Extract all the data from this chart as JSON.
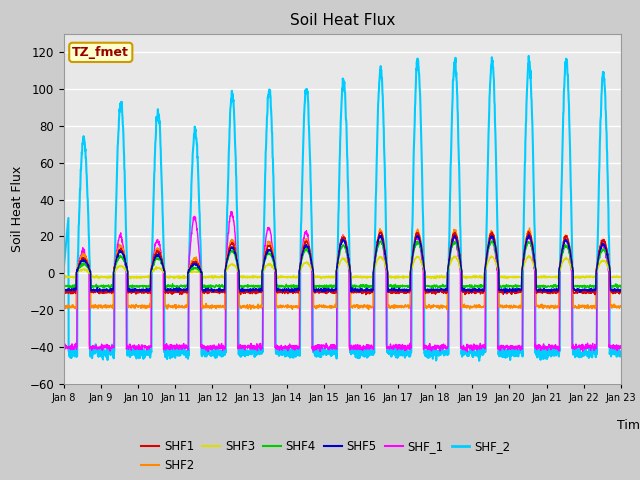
{
  "title": "Soil Heat Flux",
  "ylabel": "Soil Heat Flux",
  "xlabel": "Time",
  "ylim": [
    -60,
    130
  ],
  "yticks": [
    -60,
    -40,
    -20,
    0,
    20,
    40,
    60,
    80,
    100,
    120
  ],
  "x_labels": [
    "Jan 8",
    "Jan 9",
    "Jan 10",
    "Jan 11",
    "Jan 12",
    "Jan 13",
    "Jan 14",
    "Jan 15",
    "Jan 16",
    "Jan 17",
    "Jan 18",
    "Jan 19",
    "Jan 20",
    "Jan 21",
    "Jan 22",
    "Jan 23"
  ],
  "series_order": [
    "SHF_2",
    "SHF_1",
    "SHF2",
    "SHF1",
    "SHF3",
    "SHF4",
    "SHF5"
  ],
  "series": {
    "SHF1": {
      "color": "#dd0000",
      "lw": 1.0
    },
    "SHF2": {
      "color": "#ff8800",
      "lw": 1.0
    },
    "SHF3": {
      "color": "#dddd00",
      "lw": 1.0
    },
    "SHF4": {
      "color": "#00cc00",
      "lw": 1.0
    },
    "SHF5": {
      "color": "#0000cc",
      "lw": 1.0
    },
    "SHF_1": {
      "color": "#ff00ff",
      "lw": 1.0
    },
    "SHF_2": {
      "color": "#00ccff",
      "lw": 1.5
    }
  },
  "legend_label": "TZ_fmet",
  "fig_bg": "#cccccc",
  "plot_bg": "#e8e8e8",
  "n_days": 15,
  "pts_per_day": 144
}
